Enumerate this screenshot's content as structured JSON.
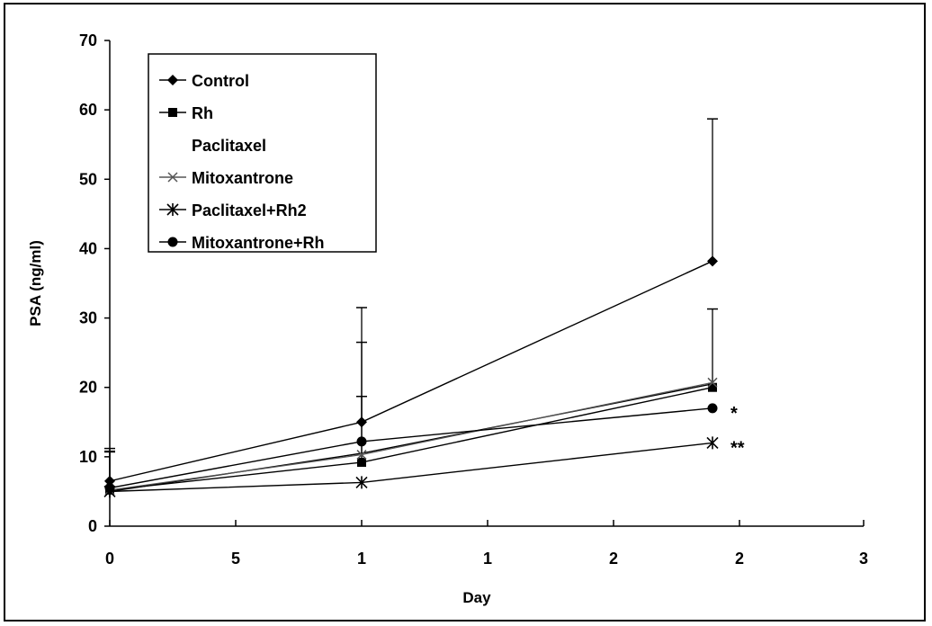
{
  "chart_data": {
    "type": "line",
    "title": "",
    "xlabel": "Day",
    "ylabel": "PSA (ng/ml)",
    "x": [
      0,
      1,
      2
    ],
    "x_tick_labels": [
      "0",
      "5",
      "1",
      "1",
      "2",
      "2",
      "3"
    ],
    "ylim": [
      0,
      70
    ],
    "y_ticks": [
      0,
      10,
      20,
      30,
      40,
      50,
      60,
      70
    ],
    "grid": false,
    "legend_position": "top-left",
    "series": [
      {
        "name": "Control",
        "marker": "diamond",
        "color": "#000000",
        "values": [
          6.5,
          15,
          38.2
        ],
        "error": [
          4.3,
          16.5,
          20.5
        ]
      },
      {
        "name": "Rh",
        "marker": "square",
        "color": "#000000",
        "values": [
          5.2,
          9.2,
          20
        ],
        "error": [
          5.5,
          17.3,
          11.3
        ]
      },
      {
        "name": "Paclitaxel",
        "marker": "none",
        "color": "#000000",
        "values": [
          5.0,
          10.5,
          20.5
        ],
        "error": [
          6.2,
          8.2,
          0
        ]
      },
      {
        "name": "Mitoxantrone",
        "marker": "x",
        "color": "#555555",
        "values": [
          5.2,
          10.3,
          20.7
        ],
        "error": [
          0,
          0,
          0
        ]
      },
      {
        "name": "Paclitaxel+Rh2",
        "marker": "asterisk",
        "color": "#000000",
        "values": [
          5.0,
          6.3,
          12
        ],
        "error": [
          0,
          0,
          0
        ]
      },
      {
        "name": "Mitoxantrone+Rh",
        "marker": "circle",
        "color": "#000000",
        "values": [
          5.5,
          12.2,
          17
        ],
        "error": [
          0,
          0,
          0
        ]
      }
    ],
    "annotations": [
      {
        "text": "*",
        "series": "Mitoxantrone+Rh",
        "x": 2
      },
      {
        "text": "**",
        "series": "Paclitaxel+Rh2",
        "x": 2
      }
    ]
  }
}
